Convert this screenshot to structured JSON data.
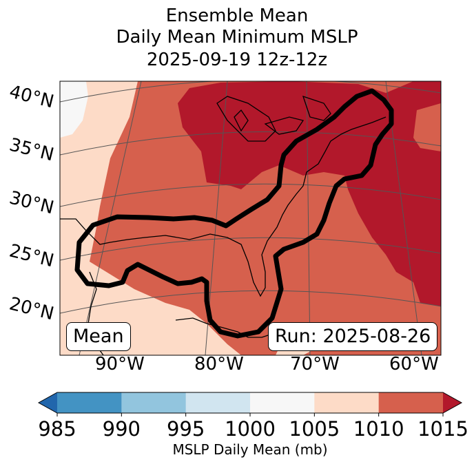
{
  "title": {
    "line1": "Ensemble Mean",
    "line2": "Daily Mean Minimum MSLP",
    "line3": "2025-09-19 12z-12z"
  },
  "map": {
    "lat_labels": [
      "40°N",
      "35°N",
      "30°N",
      "25°N",
      "20°N"
    ],
    "lon_labels": [
      "90°W",
      "80°W",
      "70°W",
      "60°W"
    ],
    "mean_label": "Mean",
    "run_label": "Run: 2025-08-26",
    "colors": {
      "shade_1000_1005": "#f7f7f7",
      "shade_1005_1010": "#fddbc7",
      "shade_1010_1015": "#d6604d",
      "shade_1015_plus": "#b2182b",
      "contour": "#000000",
      "coast": "#000000",
      "grid": "#555555"
    }
  },
  "colorbar": {
    "ticks": [
      "985",
      "990",
      "995",
      "1000",
      "1005",
      "1010",
      "1015"
    ],
    "label": "MSLP Daily Mean (mb)",
    "segments": [
      {
        "range": "<985",
        "color": "#2166ac"
      },
      {
        "range": "985-990",
        "color": "#4393c3"
      },
      {
        "range": "990-995",
        "color": "#92c5de"
      },
      {
        "range": "995-1000",
        "color": "#d1e5f0"
      },
      {
        "range": "1000-1005",
        "color": "#f7f7f7"
      },
      {
        "range": "1005-1010",
        "color": "#fddbc7"
      },
      {
        "range": "1010-1015",
        "color": "#d6604d"
      },
      {
        "range": ">1015",
        "color": "#b2182b"
      }
    ]
  }
}
